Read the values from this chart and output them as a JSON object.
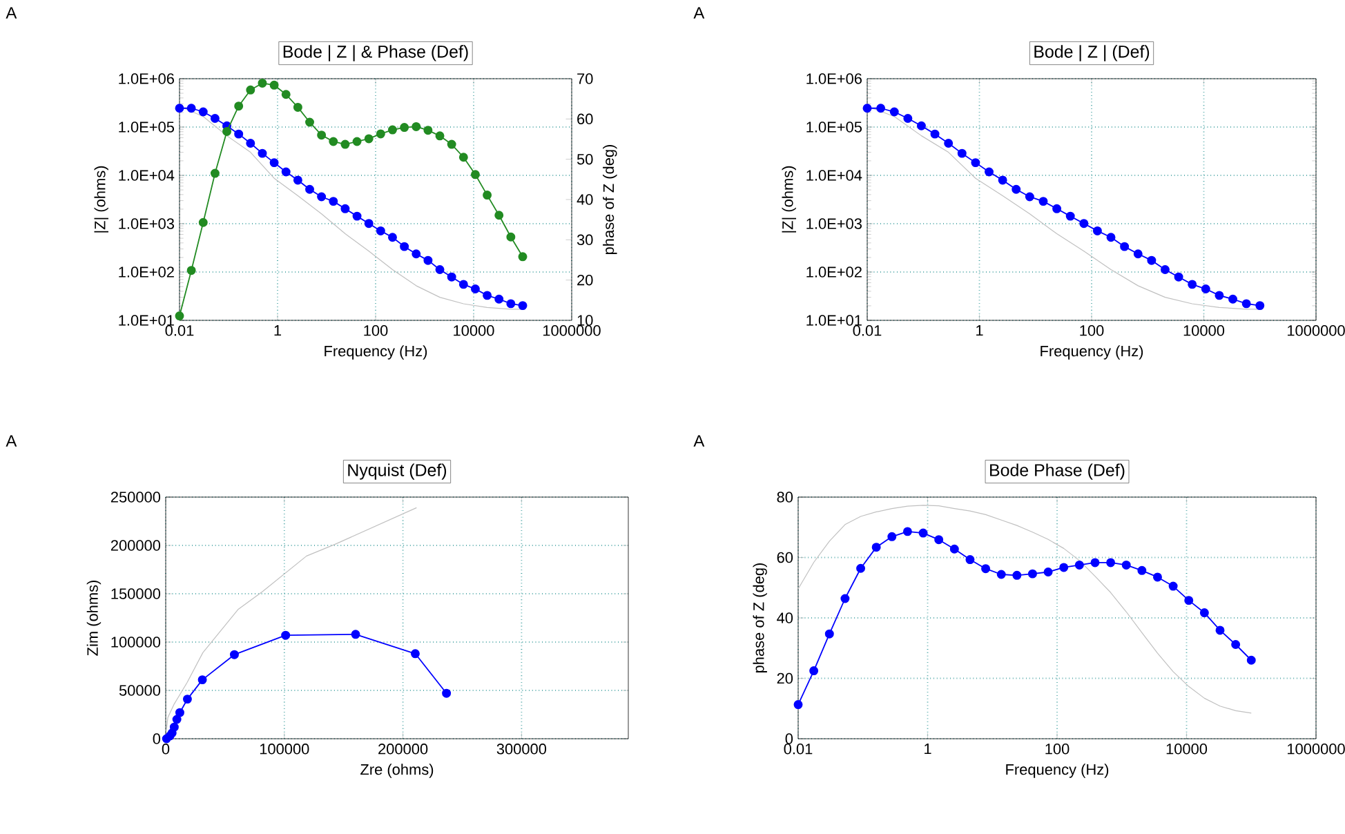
{
  "chart_data": [
    {
      "type": "line",
      "title": "Bode | Z | & Phase (Def)",
      "xlabel": "Frequency (Hz)",
      "ylabel": "|Z| (ohms)",
      "y2label": "phase of Z (deg)",
      "annotations": [
        "A"
      ],
      "log": "xy",
      "grid": true,
      "marker": "circle",
      "line_style": "solid",
      "xlim": [
        0.01,
        1000000
      ],
      "ylim": [
        10,
        1000000
      ],
      "y2lim": [
        10,
        70
      ],
      "xticks": [
        0.01,
        1,
        100,
        10000,
        1000000
      ],
      "yticks": [
        {
          "value": 10,
          "label": "1.0E+01"
        },
        {
          "value": 100,
          "label": "1.0E+02"
        },
        {
          "value": 1000,
          "label": "1.0E+03"
        },
        {
          "value": 10000,
          "label": "1.0E+04"
        },
        {
          "value": 100000,
          "label": "1.0E+05"
        },
        {
          "value": 1000000,
          "label": "1.0E+06"
        }
      ],
      "y2ticks": [
        10,
        20,
        30,
        40,
        50,
        60,
        70
      ],
      "x": [
        0.01,
        0.01743,
        0.0304,
        0.053,
        0.0924,
        0.161,
        0.2807,
        0.4894,
        0.853,
        1.487,
        2.593,
        4.52,
        7.88,
        13.74,
        23.95,
        41.75,
        72.8,
        126.9,
        221.2,
        385.7,
        672.4,
        1172,
        2043,
        3562,
        6210,
        10826,
        18874,
        32903,
        57362,
        100000
      ],
      "series": [
        {
          "color": "#c0c0c0",
          "marker": "none",
          "x": [
            0.01,
            0.0304,
            0.0924,
            0.2807,
            0.853,
            2.593,
            7.88,
            23.95,
            72.8,
            221.2,
            672.4,
            2043,
            6210,
            18874,
            57362,
            100000
          ],
          "values": [
            270000,
            165000,
            66000,
            30000,
            8700,
            3800,
            1600,
            620,
            270,
            112,
            52,
            30,
            22,
            18.5,
            17,
            17
          ]
        },
        {
          "color": "#0000ff",
          "values": [
            245000,
            245000,
            206000,
            151000,
            106000,
            71600,
            46100,
            28500,
            18300,
            11800,
            7960,
            5130,
            3610,
            2900,
            2040,
            1430,
            1010,
            710,
            522,
            336,
            237,
            174,
            112,
            78.9,
            55.5,
            44.6,
            32.8,
            27.5,
            22.1,
            20.2
          ]
        },
        {
          "color": "#228b22",
          "axis": "y2",
          "values": [
            11.1,
            22.4,
            34.3,
            46.5,
            56.9,
            63.2,
            67.2,
            68.9,
            68.4,
            66.1,
            62.9,
            59.2,
            56.0,
            54.4,
            53.7,
            54.4,
            55.1,
            56.3,
            57.3,
            57.9,
            58.1,
            57.2,
            55.8,
            53.7,
            50.5,
            46.2,
            41.1,
            36.1,
            30.7,
            25.8
          ]
        }
      ]
    },
    {
      "type": "line",
      "title": "Bode | Z | (Def)",
      "xlabel": "Frequency (Hz)",
      "ylabel": "|Z| (ohms)",
      "annotations": [
        "A"
      ],
      "log": "xy",
      "grid": true,
      "marker": "circle",
      "line_style": "solid",
      "xlim": [
        0.01,
        1000000
      ],
      "ylim": [
        10,
        1000000
      ],
      "xticks": [
        0.01,
        1,
        100,
        10000,
        1000000
      ],
      "yticks": [
        {
          "value": 10,
          "label": "1.0E+01"
        },
        {
          "value": 100,
          "label": "1.0E+02"
        },
        {
          "value": 1000,
          "label": "1.0E+03"
        },
        {
          "value": 10000,
          "label": "1.0E+04"
        },
        {
          "value": 100000,
          "label": "1.0E+05"
        },
        {
          "value": 1000000,
          "label": "1.0E+06"
        }
      ],
      "x": [
        0.01,
        0.01743,
        0.0304,
        0.053,
        0.0924,
        0.161,
        0.2807,
        0.4894,
        0.853,
        1.487,
        2.593,
        4.52,
        7.88,
        13.74,
        23.95,
        41.75,
        72.8,
        126.9,
        221.2,
        385.7,
        672.4,
        1172,
        2043,
        3562,
        6210,
        10826,
        18874,
        32903,
        57362,
        100000
      ],
      "series": [
        {
          "color": "#c0c0c0",
          "marker": "none",
          "x": [
            0.01,
            0.0304,
            0.0924,
            0.2807,
            0.853,
            2.593,
            7.88,
            23.95,
            72.8,
            221.2,
            672.4,
            2043,
            6210,
            18874,
            57362,
            100000
          ],
          "values": [
            270000,
            165000,
            66000,
            30000,
            8700,
            3800,
            1600,
            620,
            270,
            112,
            52,
            30,
            22,
            18.5,
            17,
            17
          ]
        },
        {
          "color": "#0000ff",
          "values": [
            245000,
            245000,
            206000,
            151000,
            106000,
            71600,
            46100,
            28500,
            18300,
            11800,
            7960,
            5130,
            3610,
            2900,
            2040,
            1430,
            1010,
            710,
            522,
            336,
            237,
            174,
            112,
            78.9,
            55.5,
            44.6,
            32.8,
            27.5,
            22.1,
            20.2
          ]
        }
      ]
    },
    {
      "type": "line",
      "title": "Nyquist (Def)",
      "xlabel": "Zre (ohms)",
      "ylabel": "Zim (ohms)",
      "annotations": [
        "A"
      ],
      "grid": true,
      "marker": "circle",
      "line_style": "solid",
      "xlim": [
        0,
        390000
      ],
      "ylim": [
        0,
        250000
      ],
      "xticks": [
        0,
        100000,
        200000,
        300000
      ],
      "yticks": [
        0,
        50000,
        100000,
        150000,
        200000,
        250000
      ],
      "series": [
        {
          "color": "#c0c0c0",
          "marker": "none",
          "x": [
            500,
            1800,
            7200,
            18000,
            31300,
            61200,
            81300,
            118700,
            142400,
            211500
          ],
          "values": [
            8000,
            22000,
            36000,
            58000,
            89000,
            134000,
            152000,
            189000,
            201000,
            239000
          ]
        },
        {
          "color": "#0000ff",
          "x": [
            700,
            1800,
            3600,
            5400,
            7200,
            9400,
            11900,
            18300,
            30900,
            57900,
            101100,
            160100,
            210400,
            236700
          ],
          "values": [
            0,
            null,
            3000,
            6000,
            12000,
            20000,
            27000,
            41000,
            61000,
            87000,
            107000,
            108000,
            88000,
            47000
          ]
        }
      ]
    },
    {
      "type": "line",
      "title": "Bode Phase (Def)",
      "xlabel": "Frequency (Hz)",
      "ylabel": "phase of Z (deg)",
      "annotations": [
        "A"
      ],
      "log": "x",
      "grid": true,
      "marker": "circle",
      "line_style": "solid",
      "xlim": [
        0.01,
        1000000
      ],
      "ylim": [
        0,
        80
      ],
      "xticks": [
        0.01,
        1,
        100,
        10000,
        1000000
      ],
      "yticks": [
        0,
        20,
        40,
        60,
        80
      ],
      "x": [
        0.01,
        0.01743,
        0.0304,
        0.053,
        0.0924,
        0.161,
        0.2807,
        0.4894,
        0.853,
        1.487,
        2.593,
        4.52,
        7.88,
        13.74,
        23.95,
        41.75,
        72.8,
        126.9,
        221.2,
        385.7,
        672.4,
        1172,
        2043,
        3562,
        6210,
        10826,
        18874,
        32903,
        57362,
        100000
      ],
      "series": [
        {
          "color": "#c0c0c0",
          "marker": "none",
          "values": [
            49.6,
            58.4,
            65.4,
            70.9,
            73.6,
            75.1,
            76.2,
            77.0,
            77.3,
            77.1,
            76.2,
            75.4,
            74.2,
            72.4,
            70.6,
            68.4,
            66.0,
            63.0,
            59.0,
            53.8,
            48.4,
            42.0,
            35.1,
            28.3,
            22.2,
            17.3,
            13.4,
            10.8,
            9.3,
            8.5
          ]
        },
        {
          "color": "#0000ff",
          "values": [
            11.3,
            22.5,
            34.7,
            46.4,
            56.4,
            63.4,
            66.9,
            68.6,
            68.1,
            65.9,
            62.8,
            59.3,
            56.3,
            54.4,
            54.1,
            54.6,
            55.2,
            56.7,
            57.5,
            58.3,
            58.3,
            57.5,
            55.7,
            53.5,
            50.5,
            45.8,
            41.7,
            35.9,
            31.2,
            26.0
          ]
        }
      ]
    }
  ]
}
